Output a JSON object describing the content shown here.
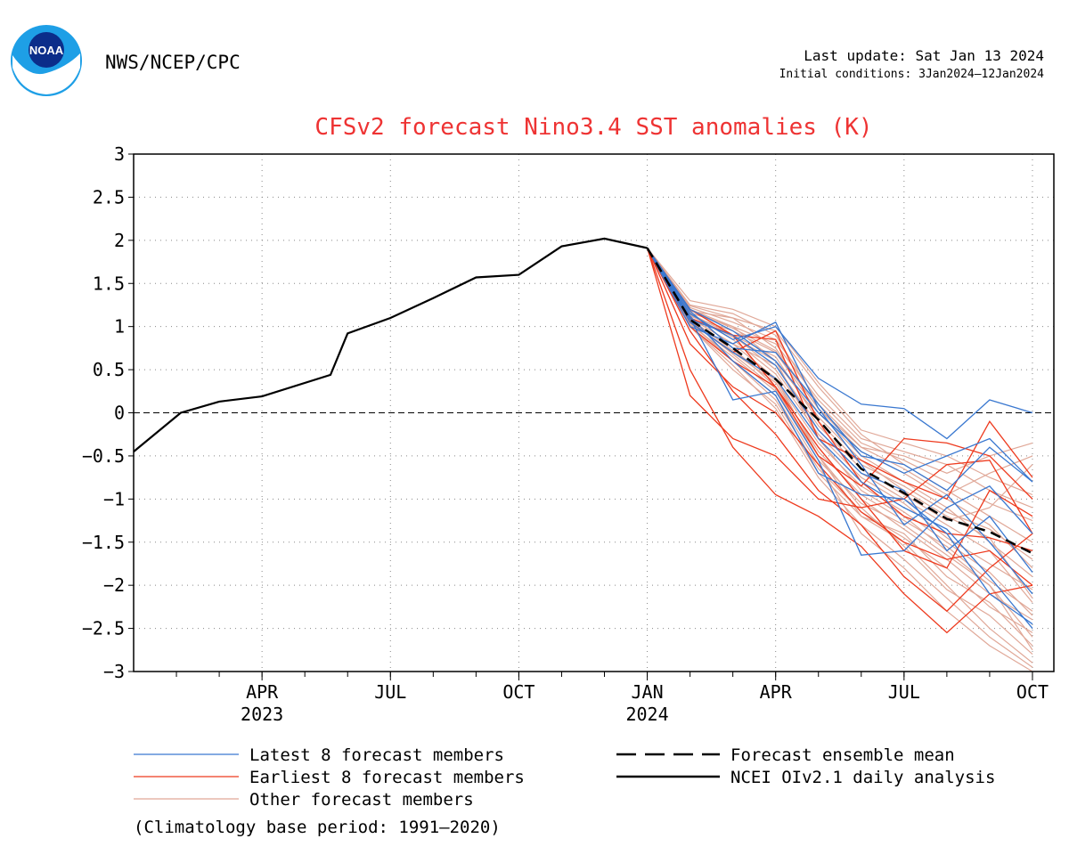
{
  "header": {
    "organization": "NWS/NCEP/CPC",
    "last_update": "Last update: Sat Jan 13 2024",
    "initial_conditions": "Initial conditions: 3Jan2024—12Jan2024",
    "logo_text": "NOAA"
  },
  "chart_data": {
    "type": "line",
    "title": "CFSv2 forecast Nino3.4 SST anomalies (K)",
    "xlabel": "",
    "ylabel": "",
    "ylim": [
      -3,
      3
    ],
    "yticks": [
      "3",
      "2.5",
      "2",
      "1.5",
      "1",
      "0.5",
      "0",
      "−0.5",
      "−1",
      "−1.5",
      "−2",
      "−2.5",
      "−3"
    ],
    "xticks": [
      {
        "label": "APR",
        "year": "2023",
        "t": 3
      },
      {
        "label": "JUL",
        "year": "",
        "t": 6
      },
      {
        "label": "OCT",
        "year": "",
        "t": 9
      },
      {
        "label": "JAN",
        "year": "2024",
        "t": 12
      },
      {
        "label": "APR",
        "year": "",
        "t": 15
      },
      {
        "label": "JUL",
        "year": "",
        "t": 18
      },
      {
        "label": "OCT",
        "year": "",
        "t": 21
      }
    ],
    "grid": true,
    "zero_line": true,
    "analysis": {
      "t": [
        0,
        1.1,
        2,
        3,
        4.6,
        5,
        6,
        7,
        8,
        9,
        10,
        11,
        12
      ],
      "values": [
        -0.45,
        0.0,
        0.13,
        0.19,
        0.44,
        0.92,
        1.1,
        1.33,
        1.57,
        1.6,
        1.93,
        2.02,
        1.91
      ]
    },
    "ensemble_mean": {
      "t": [
        12,
        13,
        14,
        15,
        16,
        17,
        18,
        19,
        20,
        21
      ],
      "values": [
        1.91,
        1.08,
        0.75,
        0.39,
        -0.08,
        -0.65,
        -0.93,
        -1.23,
        -1.38,
        -1.63
      ]
    },
    "members_latest": [
      [
        1.91,
        1.15,
        0.85,
        1.0,
        0.4,
        0.1,
        0.05,
        -0.3,
        0.15,
        0.0
      ],
      [
        1.91,
        1.2,
        0.95,
        0.6,
        0.0,
        -0.45,
        -0.7,
        -0.5,
        -0.3,
        -0.8
      ],
      [
        1.91,
        1.1,
        0.15,
        0.25,
        -0.55,
        -1.65,
        -1.6,
        -1.1,
        -0.85,
        -1.4
      ],
      [
        1.91,
        1.05,
        0.7,
        0.4,
        -0.3,
        -0.8,
        -1.1,
        -1.35,
        -1.9,
        -2.5
      ],
      [
        1.91,
        1.0,
        0.8,
        1.05,
        0.05,
        -0.6,
        -1.3,
        -0.95,
        -1.5,
        -2.1
      ],
      [
        1.91,
        1.12,
        0.6,
        0.2,
        -0.7,
        -0.95,
        -1.0,
        -1.4,
        -2.1,
        -2.45
      ],
      [
        1.91,
        1.08,
        0.9,
        0.55,
        -0.2,
        -0.7,
        -0.9,
        -1.6,
        -1.2,
        -1.85
      ],
      [
        1.91,
        1.18,
        0.75,
        0.7,
        0.1,
        -0.5,
        -0.6,
        -0.9,
        -0.4,
        -0.8
      ]
    ],
    "members_earliest": [
      [
        1.91,
        0.5,
        -0.4,
        -0.95,
        -1.2,
        -1.55,
        -2.1,
        -2.55,
        -2.1,
        -2.0
      ],
      [
        1.91,
        0.95,
        0.25,
        -0.25,
        -0.9,
        -1.3,
        -1.9,
        -2.3,
        -1.8,
        -1.4
      ],
      [
        1.91,
        1.0,
        0.6,
        0.3,
        -0.4,
        -1.0,
        -1.6,
        -1.8,
        -0.9,
        -1.2
      ],
      [
        1.91,
        1.1,
        0.9,
        0.85,
        -0.3,
        -0.55,
        -0.8,
        -1.0,
        -0.1,
        -0.75
      ],
      [
        1.91,
        1.05,
        0.7,
        0.95,
        -0.1,
        -0.8,
        -1.2,
        -1.4,
        -1.45,
        -1.6
      ],
      [
        1.91,
        0.2,
        -0.3,
        -0.5,
        -1.0,
        -1.1,
        -1.0,
        -0.6,
        -0.55,
        -1.4
      ],
      [
        1.91,
        1.2,
        0.9,
        0.3,
        -0.5,
        -0.85,
        -0.3,
        -0.35,
        -0.5,
        -1.0
      ],
      [
        1.91,
        0.8,
        0.3,
        0.0,
        -0.6,
        -1.15,
        -1.5,
        -1.7,
        -1.6,
        -2.0
      ]
    ],
    "members_other": [
      [
        1.91,
        1.25,
        1.15,
        0.9,
        0.1,
        -0.4,
        -0.5,
        -0.7,
        -0.5,
        -0.35
      ],
      [
        1.91,
        1.2,
        1.0,
        0.6,
        -0.3,
        -0.9,
        -1.2,
        -1.6,
        -2.0,
        -2.6
      ],
      [
        1.91,
        1.1,
        0.8,
        0.4,
        -0.5,
        -1.2,
        -1.5,
        -2.0,
        -2.5,
        -2.9
      ],
      [
        1.91,
        1.15,
        0.9,
        0.5,
        -0.2,
        -0.7,
        -1.0,
        -1.3,
        -1.6,
        -2.2
      ],
      [
        1.91,
        1.05,
        0.6,
        0.2,
        -0.6,
        -1.4,
        -1.8,
        -2.3,
        -2.7,
        -3.0
      ],
      [
        1.91,
        1.22,
        1.05,
        0.85,
        0.2,
        -0.3,
        -0.45,
        -0.6,
        -0.9,
        -1.1
      ],
      [
        1.91,
        1.0,
        0.5,
        0.1,
        -0.7,
        -1.2,
        -1.4,
        -1.9,
        -2.2,
        -2.7
      ],
      [
        1.91,
        1.12,
        0.95,
        0.7,
        0.0,
        -0.5,
        -0.8,
        -1.1,
        -1.5,
        -1.9
      ],
      [
        1.91,
        1.18,
        1.1,
        0.95,
        0.3,
        -0.25,
        -0.6,
        -0.9,
        -1.2,
        -1.5
      ],
      [
        1.91,
        1.08,
        0.75,
        0.3,
        -0.4,
        -1.0,
        -1.35,
        -1.7,
        -2.1,
        -2.4
      ],
      [
        1.91,
        1.3,
        1.2,
        1.0,
        0.35,
        -0.2,
        -0.35,
        -0.5,
        -0.75,
        -0.95
      ],
      [
        1.91,
        1.02,
        0.65,
        0.25,
        -0.5,
        -1.1,
        -1.55,
        -2.05,
        -2.35,
        -2.8
      ],
      [
        1.91,
        1.14,
        0.85,
        0.45,
        -0.25,
        -0.75,
        -1.05,
        -1.45,
        -1.75,
        -2.05
      ],
      [
        1.91,
        1.2,
        0.9,
        0.65,
        -0.1,
        -0.6,
        -0.85,
        -1.15,
        -1.35,
        -1.7
      ],
      [
        1.91,
        1.06,
        0.7,
        0.35,
        -0.45,
        -0.95,
        -1.25,
        -1.55,
        -1.95,
        -2.3
      ],
      [
        1.91,
        1.16,
        1.0,
        0.8,
        0.15,
        -0.35,
        -0.55,
        -0.8,
        -1.05,
        -1.25
      ],
      [
        1.91,
        1.0,
        0.55,
        0.05,
        -0.75,
        -1.3,
        -1.7,
        -2.15,
        -2.6,
        -2.95
      ],
      [
        1.91,
        1.1,
        0.8,
        0.55,
        -0.15,
        -0.65,
        -0.95,
        -1.25,
        -1.1,
        -0.6
      ],
      [
        1.91,
        1.24,
        1.1,
        0.75,
        0.05,
        -0.45,
        -0.7,
        -1.0,
        -1.3,
        -1.8
      ],
      [
        1.91,
        1.04,
        0.6,
        0.15,
        -0.65,
        -1.15,
        -1.45,
        -1.8,
        -2.25,
        -2.55
      ],
      [
        1.91,
        1.13,
        0.88,
        0.6,
        -0.05,
        -0.55,
        -0.9,
        -1.2,
        -1.45,
        -2.15
      ],
      [
        1.91,
        1.09,
        0.72,
        0.38,
        -0.35,
        -0.85,
        -1.15,
        -1.5,
        -1.85,
        -2.35
      ],
      [
        1.91,
        1.19,
        0.98,
        0.72,
        0.05,
        -0.4,
        -0.65,
        -0.95,
        -0.7,
        -0.5
      ],
      [
        1.91,
        1.07,
        0.68,
        0.28,
        -0.55,
        -1.05,
        -1.3,
        -1.65,
        -2.0,
        -2.75
      ]
    ],
    "legend": {
      "latest": "Latest 8 forecast members",
      "earliest": "Earliest 8 forecast members",
      "other": "Other forecast members",
      "mean": "Forecast ensemble mean",
      "analysis": "NCEI OIv2.1 daily analysis"
    },
    "colors": {
      "latest": "#3a78d0",
      "earliest": "#ee3a1e",
      "other": "#e0a898",
      "analysis": "#000000",
      "title": "#ee3333"
    }
  },
  "footnote": "(Climatology base period: 1991—2020)"
}
